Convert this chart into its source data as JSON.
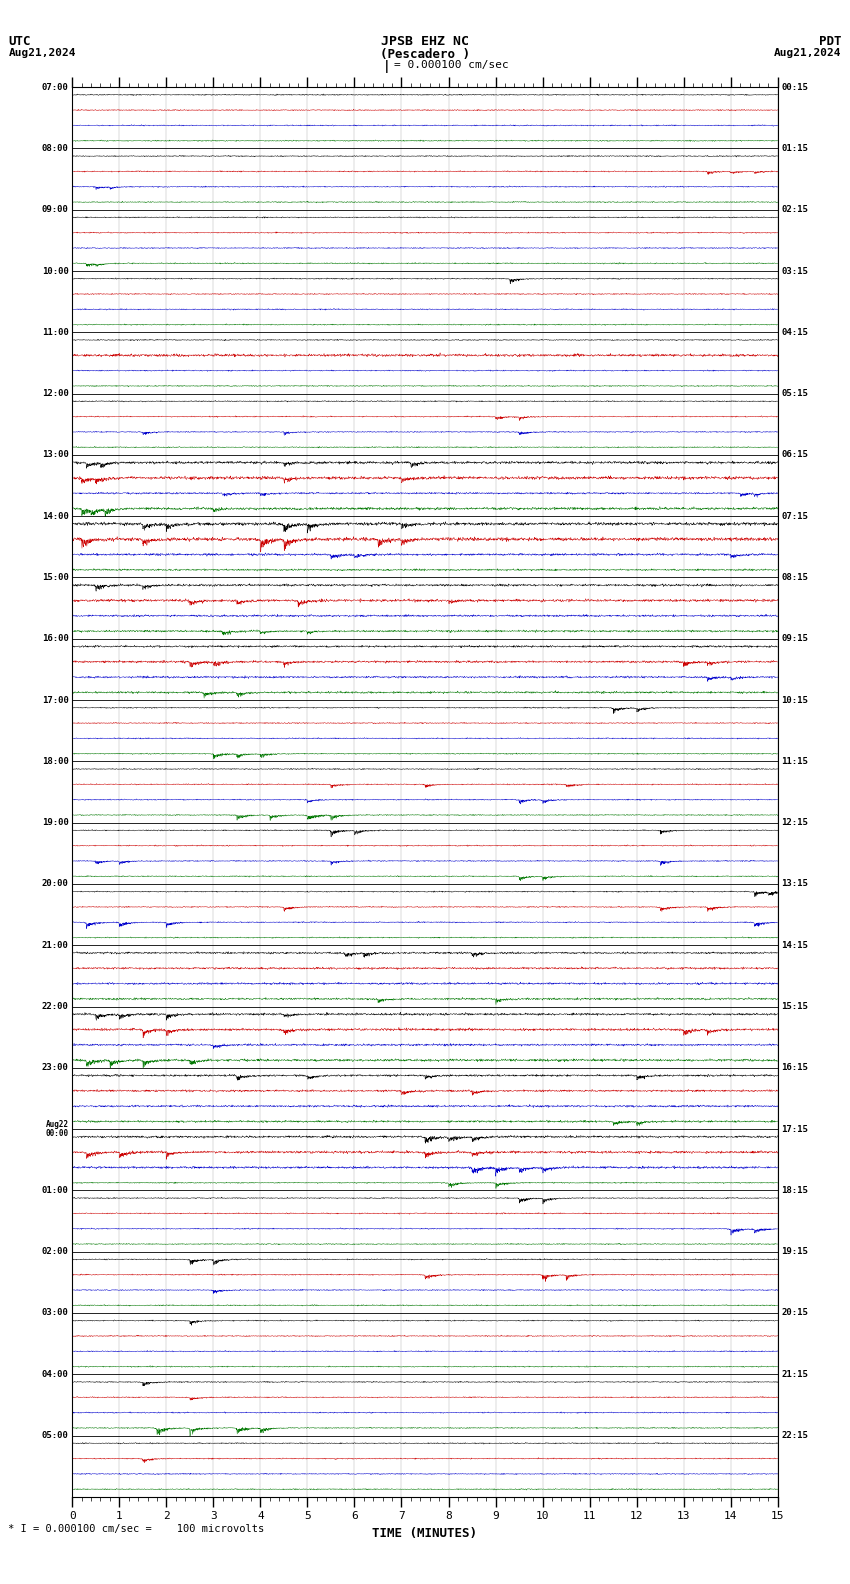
{
  "title_line1": "JPSB EHZ NC",
  "title_line2": "(Pescadero )",
  "scale_text": " I = 0.000100 cm/sec",
  "utc_label": "UTC",
  "pdt_label": "PDT",
  "utc_date": "Aug21,2024",
  "pdt_date": "Aug21,2024",
  "xlabel": "TIME (MINUTES)",
  "footer_text": "* I = 0.000100 cm/sec =    100 microvolts",
  "bg_color": "#ffffff",
  "trace_colors": [
    "#000000",
    "#cc0000",
    "#0000cc",
    "#007700"
  ],
  "hour_labels_left": [
    "07:00",
    "08:00",
    "09:00",
    "10:00",
    "11:00",
    "12:00",
    "13:00",
    "14:00",
    "15:00",
    "16:00",
    "17:00",
    "18:00",
    "19:00",
    "20:00",
    "21:00",
    "22:00",
    "23:00",
    "Aug22\n00:00",
    "01:00",
    "02:00",
    "03:00",
    "04:00",
    "05:00"
  ],
  "hour_labels_right": [
    "00:15",
    "01:15",
    "02:15",
    "03:15",
    "04:15",
    "05:15",
    "06:15",
    "07:15",
    "08:15",
    "09:15",
    "10:15",
    "11:15",
    "12:15",
    "13:15",
    "14:15",
    "15:15",
    "16:15",
    "17:15",
    "18:15",
    "19:15",
    "20:15",
    "21:15",
    "22:15"
  ],
  "num_rows": 23,
  "traces_per_row": 4,
  "xmin": 0,
  "xmax": 15
}
